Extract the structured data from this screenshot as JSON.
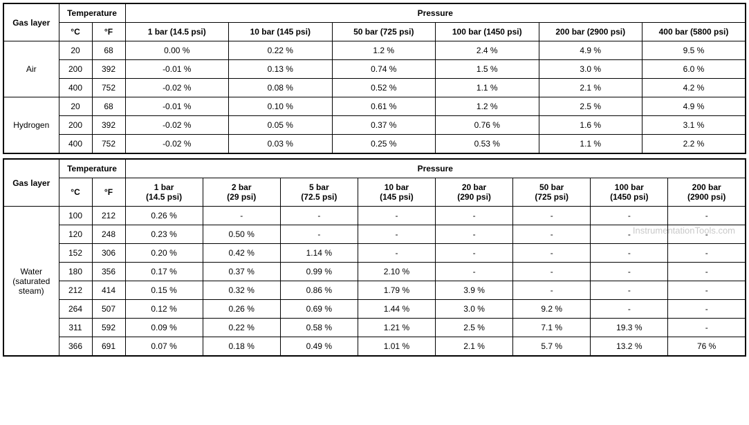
{
  "watermark": "InstrumentationTools.com",
  "table1": {
    "headers": {
      "gas_layer": "Gas layer",
      "temperature": "Temperature",
      "temp_c": "°C",
      "temp_f": "°F",
      "pressure": "Pressure",
      "pressure_cols": [
        "1 bar (14.5 psi)",
        "10 bar (145 psi)",
        "50 bar (725 psi)",
        "100 bar (1450 psi)",
        "200 bar (2900 psi)",
        "400 bar (5800 psi)"
      ]
    },
    "groups": [
      {
        "label": "Air",
        "rows": [
          {
            "c": "20",
            "f": "68",
            "vals": [
              "0.00 %",
              "0.22 %",
              "1.2 %",
              "2.4 %",
              "4.9 %",
              "9.5 %"
            ]
          },
          {
            "c": "200",
            "f": "392",
            "vals": [
              "-0.01 %",
              "0.13 %",
              "0.74 %",
              "1.5 %",
              "3.0 %",
              "6.0 %"
            ]
          },
          {
            "c": "400",
            "f": "752",
            "vals": [
              "-0.02 %",
              "0.08 %",
              "0.52 %",
              "1.1 %",
              "2.1 %",
              "4.2 %"
            ]
          }
        ]
      },
      {
        "label": "Hydrogen",
        "rows": [
          {
            "c": "20",
            "f": "68",
            "vals": [
              "-0.01 %",
              "0.10 %",
              "0.61 %",
              "1.2 %",
              "2.5 %",
              "4.9 %"
            ]
          },
          {
            "c": "200",
            "f": "392",
            "vals": [
              "-0.02 %",
              "0.05 %",
              "0.37 %",
              "0.76 %",
              "1.6 %",
              "3.1 %"
            ]
          },
          {
            "c": "400",
            "f": "752",
            "vals": [
              "-0.02 %",
              "0.03 %",
              "0.25 %",
              "0.53 %",
              "1.1 %",
              "2.2 %"
            ]
          }
        ]
      }
    ]
  },
  "table2": {
    "headers": {
      "gas_layer": "Gas layer",
      "temperature": "Temperature",
      "temp_c": "°C",
      "temp_f": "°F",
      "pressure": "Pressure",
      "pressure_cols": [
        {
          "line1": "1 bar",
          "line2": "(14.5 psi)"
        },
        {
          "line1": "2 bar",
          "line2": "(29 psi)"
        },
        {
          "line1": "5 bar",
          "line2": "(72.5 psi)"
        },
        {
          "line1": "10 bar",
          "line2": "(145 psi)"
        },
        {
          "line1": "20 bar",
          "line2": "(290 psi)"
        },
        {
          "line1": "50 bar",
          "line2": "(725 psi)"
        },
        {
          "line1": "100 bar",
          "line2": "(1450 psi)"
        },
        {
          "line1": "200 bar",
          "line2": "(2900 psi)"
        }
      ]
    },
    "group_label_line1": "Water",
    "group_label_line2": "(saturated",
    "group_label_line3": "steam)",
    "rows": [
      {
        "c": "100",
        "f": "212",
        "vals": [
          "0.26 %",
          "-",
          "-",
          "-",
          "-",
          "-",
          "-",
          "-"
        ]
      },
      {
        "c": "120",
        "f": "248",
        "vals": [
          "0.23 %",
          "0.50 %",
          "-",
          "-",
          "-",
          "-",
          "-",
          "-"
        ]
      },
      {
        "c": "152",
        "f": "306",
        "vals": [
          "0.20 %",
          "0.42 %",
          "1.14 %",
          "-",
          "-",
          "-",
          "-",
          "-"
        ]
      },
      {
        "c": "180",
        "f": "356",
        "vals": [
          "0.17 %",
          "0.37 %",
          "0.99 %",
          "2.10 %",
          "-",
          "-",
          "-",
          "-"
        ]
      },
      {
        "c": "212",
        "f": "414",
        "vals": [
          "0.15 %",
          "0.32 %",
          "0.86 %",
          "1.79 %",
          "3.9 %",
          "-",
          "-",
          "-"
        ]
      },
      {
        "c": "264",
        "f": "507",
        "vals": [
          "0.12 %",
          "0.26 %",
          "0.69 %",
          "1.44 %",
          "3.0 %",
          "9.2 %",
          "-",
          "-"
        ]
      },
      {
        "c": "311",
        "f": "592",
        "vals": [
          "0.09 %",
          "0.22 %",
          "0.58 %",
          "1.21 %",
          "2.5 %",
          "7.1 %",
          "19.3 %",
          "-"
        ]
      },
      {
        "c": "366",
        "f": "691",
        "vals": [
          "0.07 %",
          "0.18 %",
          "0.49 %",
          "1.01 %",
          "2.1 %",
          "5.7 %",
          "13.2 %",
          "76 %"
        ]
      }
    ]
  }
}
